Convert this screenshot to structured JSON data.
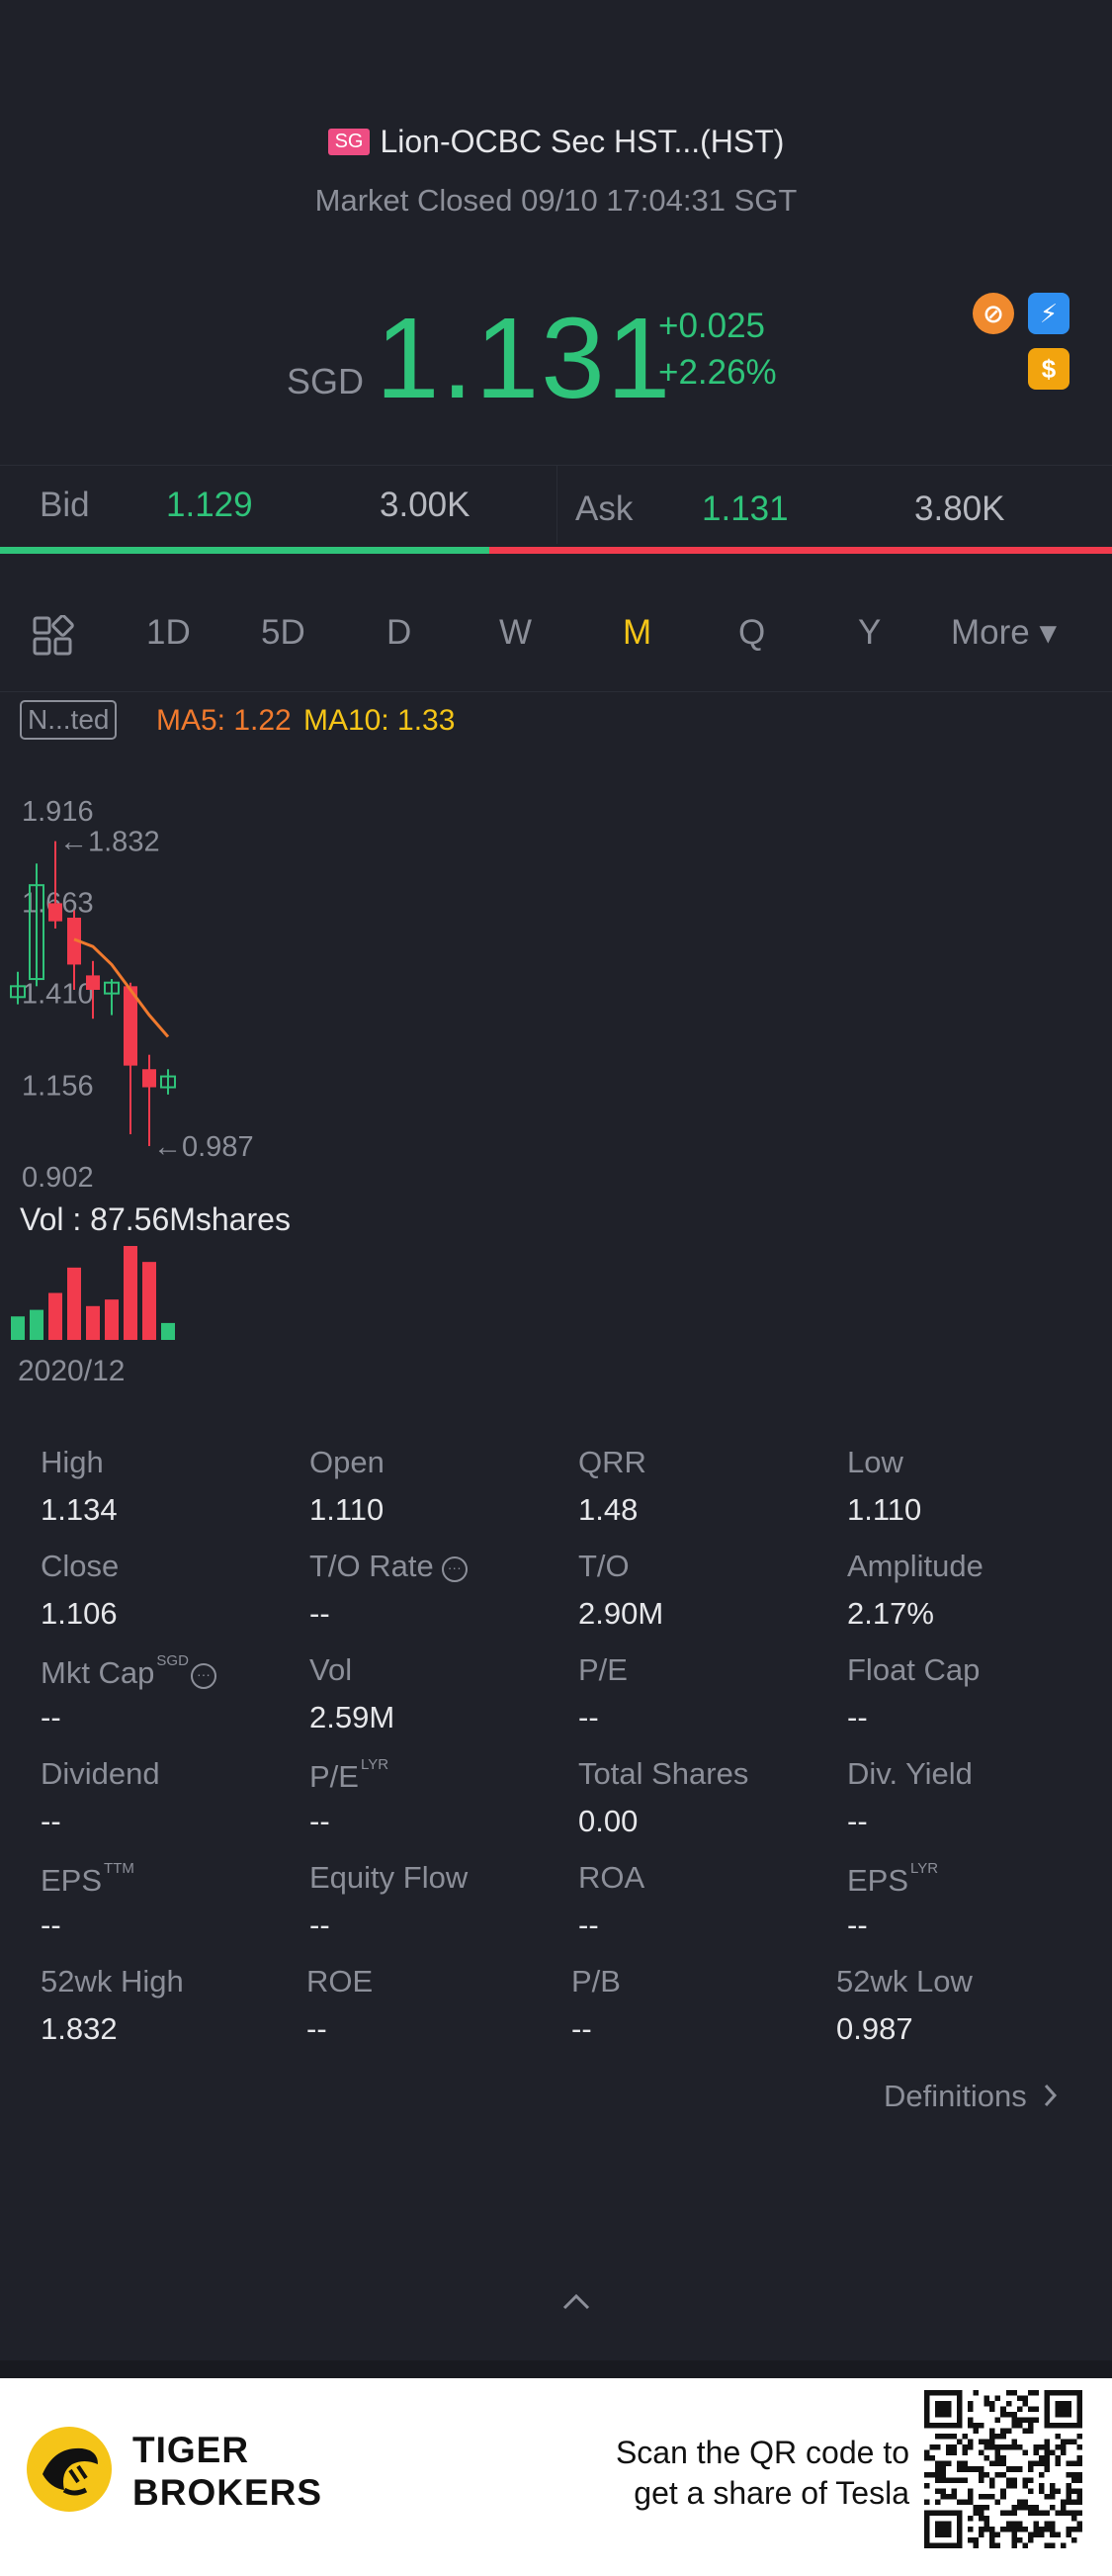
{
  "header": {
    "market_badge": "SG",
    "title": "Lion-OCBC Sec HST...(HST)",
    "status": "Market Closed 09/10 17:04:31 SGT"
  },
  "quote": {
    "currency": "SGD",
    "price": "1.131",
    "change": "+0.025",
    "change_pct": "+2.26%",
    "color_up": "#2fc47a"
  },
  "badges": [
    {
      "name": "no-short-sell-icon",
      "glyph": "⊘"
    },
    {
      "name": "flash-icon",
      "glyph": "⚡"
    },
    {
      "name": "dollar-icon",
      "glyph": "$"
    }
  ],
  "bidask": {
    "bid_label": "Bid",
    "bid_price": "1.129",
    "bid_size": "3.00K",
    "ask_label": "Ask",
    "ask_price": "1.131",
    "ask_size": "3.80K"
  },
  "tabs": {
    "layout_icon": "grid-layout-icon",
    "items": [
      "1D",
      "5D",
      "D",
      "W",
      "M",
      "Q",
      "Y"
    ],
    "active": "M",
    "more": "More ▾"
  },
  "indicators": {
    "adjust_label": "N...ted",
    "ma5": "MA5: 1.22",
    "ma10": "MA10: 1.33"
  },
  "chart": {
    "y_ticks": [
      "1.916",
      "1.663",
      "1.410",
      "1.156",
      "0.902"
    ],
    "high_marker": "←1.832",
    "low_marker": "←0.987",
    "vol_label": "Vol  : 87.56Mshares",
    "date_label": "2020/12"
  },
  "chart_data": {
    "type": "candlestick",
    "period": "M",
    "ylim": [
      0.902,
      1.916
    ],
    "candles": [
      {
        "open": 1.4,
        "close": 1.43,
        "high": 1.47,
        "low": 1.38,
        "dir": "up"
      },
      {
        "open": 1.45,
        "close": 1.71,
        "high": 1.77,
        "low": 1.43,
        "dir": "up"
      },
      {
        "open": 1.66,
        "close": 1.61,
        "high": 1.832,
        "low": 1.59,
        "dir": "down"
      },
      {
        "open": 1.62,
        "close": 1.49,
        "high": 1.64,
        "low": 1.42,
        "dir": "down"
      },
      {
        "open": 1.46,
        "close": 1.42,
        "high": 1.5,
        "low": 1.34,
        "dir": "down"
      },
      {
        "open": 1.41,
        "close": 1.44,
        "high": 1.45,
        "low": 1.35,
        "dir": "up"
      },
      {
        "open": 1.43,
        "close": 1.21,
        "high": 1.44,
        "low": 1.02,
        "dir": "down"
      },
      {
        "open": 1.2,
        "close": 1.15,
        "high": 1.24,
        "low": 0.987,
        "dir": "down"
      },
      {
        "open": 1.15,
        "close": 1.18,
        "high": 1.2,
        "low": 1.13,
        "dir": "up"
      }
    ],
    "ma_line": [
      1.56,
      1.54,
      1.49,
      1.42,
      1.35,
      1.29
    ],
    "volume": [
      {
        "v": 0.25,
        "dir": "up"
      },
      {
        "v": 0.32,
        "dir": "up"
      },
      {
        "v": 0.5,
        "dir": "down"
      },
      {
        "v": 0.77,
        "dir": "down"
      },
      {
        "v": 0.36,
        "dir": "down"
      },
      {
        "v": 0.43,
        "dir": "down"
      },
      {
        "v": 1.0,
        "dir": "down"
      },
      {
        "v": 0.83,
        "dir": "down"
      },
      {
        "v": 0.18,
        "dir": "up"
      }
    ]
  },
  "stats": {
    "high_label": "High",
    "high": "1.134",
    "open_label": "Open",
    "open": "1.110",
    "qrr_label": "QRR",
    "qrr": "1.48",
    "low_label": "Low",
    "low": "1.110",
    "close_label": "Close",
    "close": "1.106",
    "to_rate_label": "T/O Rate",
    "to_rate": "--",
    "to_label": "T/O",
    "to": "2.90M",
    "amp_label": "Amplitude",
    "amp": "2.17%",
    "mktcap_label": "Mkt Cap",
    "mktcap_sup": "SGD",
    "mktcap": "--",
    "vol_label": "Vol",
    "vol": "2.59M",
    "pe_label": "P/E",
    "pe": "--",
    "floatcap_label": "Float Cap",
    "floatcap": "--",
    "div_label": "Dividend",
    "div": "--",
    "pe_lyr_label": "P/E",
    "pe_lyr_sup": "LYR",
    "pe_lyr": "--",
    "shares_label": "Total Shares",
    "shares": "0.00",
    "divyield_label": "Div. Yield",
    "divyield": "--",
    "eps_ttm_label": "EPS",
    "eps_ttm_sup": "TTM",
    "eps_ttm": "--",
    "equity_label": "Equity Flow",
    "equity": "--",
    "roa_label": "ROA",
    "roa": "--",
    "eps_lyr_label": "EPS",
    "eps_lyr_sup": "LYR",
    "eps_lyr": "--",
    "wk52h_label": "52wk High",
    "wk52h": "1.832",
    "roe_label": "ROE",
    "roe": "--",
    "pb_label": "P/B",
    "pb": "--",
    "wk52l_label": "52wk Low",
    "wk52l": "0.987"
  },
  "definitions": "Definitions",
  "footer": {
    "brand_line1": "TIGER",
    "brand_line2": "BROKERS",
    "scan_line1": "Scan the QR code to",
    "scan_line2": "get a share of Tesla"
  }
}
